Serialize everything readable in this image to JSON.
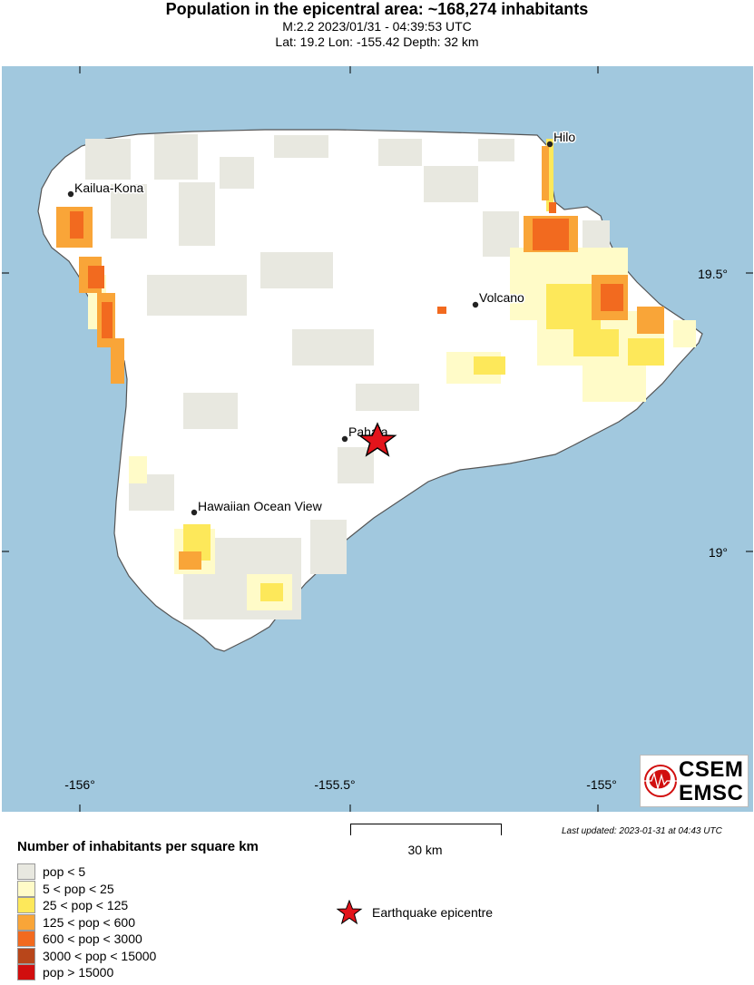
{
  "header": {
    "title": "Population in the epicentral area: ~168,274 inhabitants",
    "line1": "M:2.2 2023/01/31 - 04:39:53 UTC",
    "line2": "Lat: 19.2 Lon: -155.42 Depth: 32 km"
  },
  "map": {
    "lon_ticks": [
      "-156°",
      "-155.5°",
      "-155°"
    ],
    "lat_ticks": [
      "19.5°",
      "19°"
    ],
    "places": [
      {
        "name": "Hilo",
        "lon": -155.08,
        "lat": 19.72
      },
      {
        "name": "Kailua-Kona",
        "lon": -156.0,
        "lat": 19.64
      },
      {
        "name": "Volcano",
        "lon": -155.24,
        "lat": 19.44
      },
      {
        "name": "Pahala",
        "lon": -155.48,
        "lat": 19.2
      },
      {
        "name": "Hawaiian Ocean View",
        "lon": -155.77,
        "lat": 19.07
      }
    ],
    "epicenter": {
      "lon": -155.42,
      "lat": 19.2
    },
    "colors": {
      "ocean": "#a1c8de",
      "land": "#ffffff",
      "coast": "#555555"
    }
  },
  "scale": {
    "label": "30 km"
  },
  "logo": {
    "line1": "CSEM",
    "line2": "EMSC"
  },
  "last_updated": "Last updated: 2023-01-31 at 04:43 UTC",
  "legend": {
    "title": "Number of inhabitants per square km",
    "items": [
      {
        "label": "pop < 5",
        "color": "#e8e8e0"
      },
      {
        "label": "5 < pop < 25",
        "color": "#fffbc8"
      },
      {
        "label": "25 < pop < 125",
        "color": "#fde85a"
      },
      {
        "label": "125 < pop < 600",
        "color": "#f9a538"
      },
      {
        "label": "600 < pop < 3000",
        "color": "#f26a1f"
      },
      {
        "label": "3000 < pop < 15000",
        "color": "#b8461a"
      },
      {
        "label": "pop > 15000",
        "color": "#d10e0e"
      }
    ],
    "epicentre_label": "Earthquake epicentre"
  }
}
